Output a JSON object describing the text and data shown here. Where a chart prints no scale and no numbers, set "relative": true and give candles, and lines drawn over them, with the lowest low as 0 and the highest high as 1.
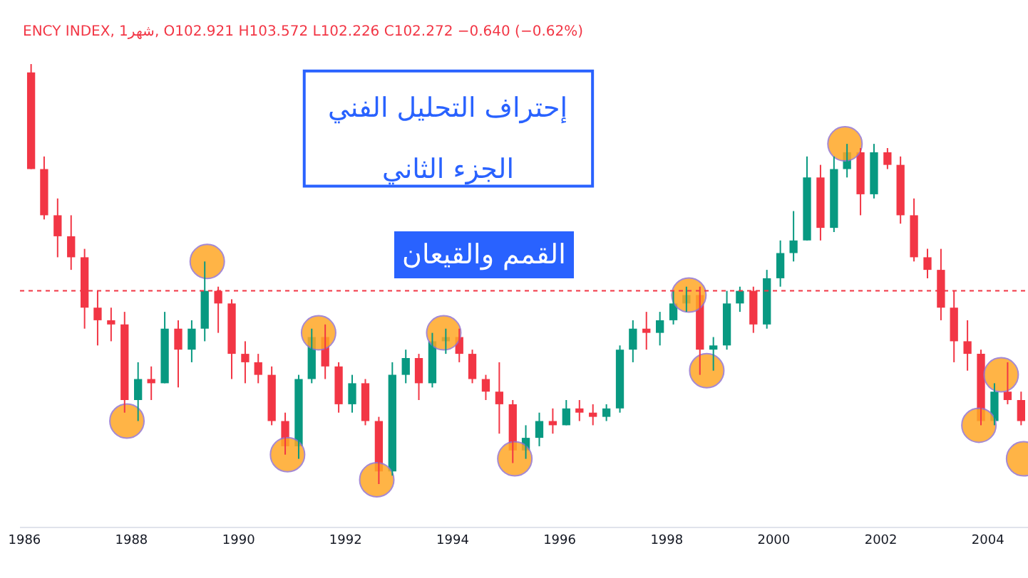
{
  "chart_data": {
    "type": "candlestick",
    "relative": true,
    "title": "إحتراف التحليل الفني",
    "subtitle": "الجزء الثاني",
    "annotations": [
      "القمم والقيعان",
      "ENCY INDEX, 1شهر, O102.921 H103.572 L102.226 C102.272 −0.640 (−0.62%)"
    ],
    "colors": [
      "#f23645",
      "#f23645",
      "#f23645",
      "#f23645",
      "#f23645",
      "#f23645",
      "#f23645",
      "#f23645",
      "#089981",
      "#f23645",
      "#089981",
      "#f23645",
      "#089981",
      "#089981",
      "#f23645",
      "#f23645",
      "#f23645",
      "#f23645",
      "#f23645",
      "#f23645",
      "#089981",
      "#089981",
      "#f23645",
      "#f23645",
      "#089981",
      "#f23645",
      "#f23645",
      "#089981",
      "#089981",
      "#f23645",
      "#089981",
      "#089981",
      "#f23645",
      "#f23645",
      "#f23645",
      "#f23645",
      "#f23645",
      "#089981",
      "#089981",
      "#f23645",
      "#089981",
      "#f23645",
      "#f23645",
      "#089981",
      "#089981",
      "#089981",
      "#f23645",
      "#089981",
      "#089981",
      "#089981",
      "#f23645",
      "#089981",
      "#089981",
      "#089981",
      "#f23645",
      "#089981",
      "#089981",
      "#089981",
      "#089981",
      "#f23645",
      "#089981",
      "#089981",
      "#f23645",
      "#089981",
      "#f23645",
      "#f23645",
      "#f23645",
      "#f23645",
      "#f23645",
      "#f23645",
      "#f23645",
      "#f23645",
      "#089981",
      "#f23645",
      "#f23645"
    ],
    "x": [
      "1986-02-15",
      "1986-05-15",
      "1986-08-15",
      "1986-11-15",
      "1987-02-15",
      "1987-05-15",
      "1987-08-15",
      "1987-11-15",
      "1988-02-15",
      "1988-05-15",
      "1988-08-15",
      "1988-11-15",
      "1989-02-15",
      "1989-05-15",
      "1989-08-15",
      "1989-11-15",
      "1990-02-15",
      "1990-05-15",
      "1990-08-15",
      "1990-11-15",
      "1991-02-15",
      "1991-05-15",
      "1991-08-15",
      "1991-11-15",
      "1992-02-15",
      "1992-05-15",
      "1992-08-15",
      "1992-11-15",
      "1993-02-15",
      "1993-05-15",
      "1993-08-15",
      "1993-11-15",
      "1994-02-15",
      "1994-05-15",
      "1994-08-15",
      "1994-11-15",
      "1995-02-15",
      "1995-05-15",
      "1995-08-15",
      "1995-11-15",
      "1996-02-15",
      "1996-05-15",
      "1996-08-15",
      "1996-11-15",
      "1997-02-15",
      "1997-05-15",
      "1997-08-15",
      "1997-11-15",
      "1998-02-15",
      "1998-05-15",
      "1998-08-15",
      "1998-11-15",
      "1999-02-15",
      "1999-05-15",
      "1999-08-15",
      "1999-11-15",
      "2000-02-15",
      "2000-05-15",
      "2000-08-15",
      "2000-11-15",
      "2001-02-15",
      "2001-05-15",
      "2001-08-15",
      "2001-11-15",
      "2002-02-15",
      "2002-05-15",
      "2002-08-15",
      "2002-11-15",
      "2003-02-15",
      "2003-05-15",
      "2003-08-15",
      "2003-11-15",
      "2004-02-15",
      "2004-05-15",
      "2004-08-15"
    ],
    "ohlc": [
      [
        0.98,
        1.0,
        0.75,
        0.75
      ],
      [
        0.75,
        0.78,
        0.63,
        0.64
      ],
      [
        0.64,
        0.68,
        0.54,
        0.59
      ],
      [
        0.59,
        0.64,
        0.51,
        0.54
      ],
      [
        0.54,
        0.56,
        0.37,
        0.42
      ],
      [
        0.42,
        0.46,
        0.33,
        0.39
      ],
      [
        0.39,
        0.42,
        0.34,
        0.38
      ],
      [
        0.38,
        0.41,
        0.17,
        0.2
      ],
      [
        0.2,
        0.29,
        0.15,
        0.25
      ],
      [
        0.25,
        0.28,
        0.2,
        0.24
      ],
      [
        0.24,
        0.41,
        0.24,
        0.37
      ],
      [
        0.37,
        0.39,
        0.23,
        0.32
      ],
      [
        0.32,
        0.39,
        0.29,
        0.37
      ],
      [
        0.37,
        0.53,
        0.34,
        0.46
      ],
      [
        0.46,
        0.47,
        0.36,
        0.43
      ],
      [
        0.43,
        0.44,
        0.25,
        0.31
      ],
      [
        0.31,
        0.34,
        0.24,
        0.29
      ],
      [
        0.29,
        0.31,
        0.24,
        0.26
      ],
      [
        0.26,
        0.28,
        0.14,
        0.15
      ],
      [
        0.15,
        0.17,
        0.07,
        0.09
      ],
      [
        0.09,
        0.26,
        0.06,
        0.25
      ],
      [
        0.25,
        0.37,
        0.24,
        0.35
      ],
      [
        0.35,
        0.38,
        0.25,
        0.28
      ],
      [
        0.28,
        0.29,
        0.17,
        0.19
      ],
      [
        0.19,
        0.26,
        0.17,
        0.24
      ],
      [
        0.24,
        0.25,
        0.14,
        0.15
      ],
      [
        0.15,
        0.16,
        0,
        0.03
      ],
      [
        0.03,
        0.29,
        0.02,
        0.26
      ],
      [
        0.26,
        0.32,
        0.24,
        0.3
      ],
      [
        0.3,
        0.31,
        0.2,
        0.24
      ],
      [
        0.24,
        0.36,
        0.23,
        0.34
      ],
      [
        0.34,
        0.37,
        0.31,
        0.35
      ],
      [
        0.35,
        0.37,
        0.29,
        0.31
      ],
      [
        0.31,
        0.32,
        0.24,
        0.25
      ],
      [
        0.25,
        0.26,
        0.2,
        0.22
      ],
      [
        0.22,
        0.29,
        0.12,
        0.19
      ],
      [
        0.19,
        0.2,
        0.05,
        0.08
      ],
      [
        0.08,
        0.14,
        0.06,
        0.11
      ],
      [
        0.11,
        0.17,
        0.09,
        0.15
      ],
      [
        0.15,
        0.18,
        0.12,
        0.14
      ],
      [
        0.14,
        0.2,
        0.14,
        0.18
      ],
      [
        0.18,
        0.2,
        0.15,
        0.17
      ],
      [
        0.17,
        0.19,
        0.14,
        0.16
      ],
      [
        0.16,
        0.19,
        0.15,
        0.18
      ],
      [
        0.18,
        0.33,
        0.17,
        0.32
      ],
      [
        0.32,
        0.39,
        0.29,
        0.37
      ],
      [
        0.37,
        0.41,
        0.32,
        0.36
      ],
      [
        0.36,
        0.41,
        0.33,
        0.39
      ],
      [
        0.39,
        0.46,
        0.38,
        0.43
      ],
      [
        0.43,
        0.47,
        0.41,
        0.45
      ],
      [
        0.45,
        0.47,
        0.26,
        0.32
      ],
      [
        0.32,
        0.35,
        0.27,
        0.33
      ],
      [
        0.33,
        0.46,
        0.32,
        0.43
      ],
      [
        0.43,
        0.47,
        0.41,
        0.46
      ],
      [
        0.46,
        0.47,
        0.36,
        0.38
      ],
      [
        0.38,
        0.51,
        0.37,
        0.49
      ],
      [
        0.49,
        0.58,
        0.47,
        0.55
      ],
      [
        0.55,
        0.65,
        0.53,
        0.58
      ],
      [
        0.58,
        0.78,
        0.58,
        0.73
      ],
      [
        0.73,
        0.76,
        0.58,
        0.61
      ],
      [
        0.61,
        0.78,
        0.6,
        0.75
      ],
      [
        0.75,
        0.81,
        0.73,
        0.79
      ],
      [
        0.79,
        0.8,
        0.64,
        0.69
      ],
      [
        0.69,
        0.81,
        0.68,
        0.79
      ],
      [
        0.79,
        0.8,
        0.75,
        0.76
      ],
      [
        0.76,
        0.78,
        0.62,
        0.64
      ],
      [
        0.64,
        0.68,
        0.53,
        0.54
      ],
      [
        0.54,
        0.56,
        0.49,
        0.51
      ],
      [
        0.51,
        0.56,
        0.39,
        0.42
      ],
      [
        0.42,
        0.46,
        0.29,
        0.34
      ],
      [
        0.34,
        0.39,
        0.27,
        0.31
      ],
      [
        0.31,
        0.32,
        0.14,
        0.15
      ],
      [
        0.15,
        0.24,
        0.14,
        0.22
      ],
      [
        0.22,
        0.29,
        0.19,
        0.2
      ],
      [
        0.2,
        0.22,
        0.14,
        0.15
      ]
    ],
    "series": [
      {
        "type": "scatter",
        "color": "#ffa726",
        "x": [
          "1987-12",
          "1989-06",
          "1990-12",
          "1991-07",
          "1992-08",
          "1993-11",
          "1995-03",
          "1998-06",
          "1998-10",
          "2001-05",
          "2003-11",
          "2004-04",
          "2004-09"
        ],
        "values": [
          0.15,
          0.53,
          0.07,
          0.36,
          0.01,
          0.36,
          0.06,
          0.45,
          0.27,
          0.81,
          0.14,
          0.26,
          0.06
        ]
      }
    ],
    "marker": "circle",
    "ref_lines": [
      {
        "axis": "y",
        "value": 0.46,
        "color": "#f23645",
        "line_style": "dotted"
      }
    ],
    "xlim": [
      "1985-12-01",
      "2004-10-01"
    ],
    "xticks": [
      {
        "value": "1986",
        "label": "1986"
      },
      {
        "value": "1988",
        "label": "1988"
      },
      {
        "value": "1990",
        "label": "1990"
      },
      {
        "value": "1992",
        "label": "1992"
      },
      {
        "value": "1994",
        "label": "1994"
      },
      {
        "value": "1996",
        "label": "1996"
      },
      {
        "value": "1998",
        "label": "1998"
      },
      {
        "value": "2000",
        "label": "2000"
      },
      {
        "value": "2002",
        "label": "2002"
      },
      {
        "value": "2004",
        "label": "2004"
      }
    ],
    "grid": false,
    "tick_labels": "x"
  }
}
